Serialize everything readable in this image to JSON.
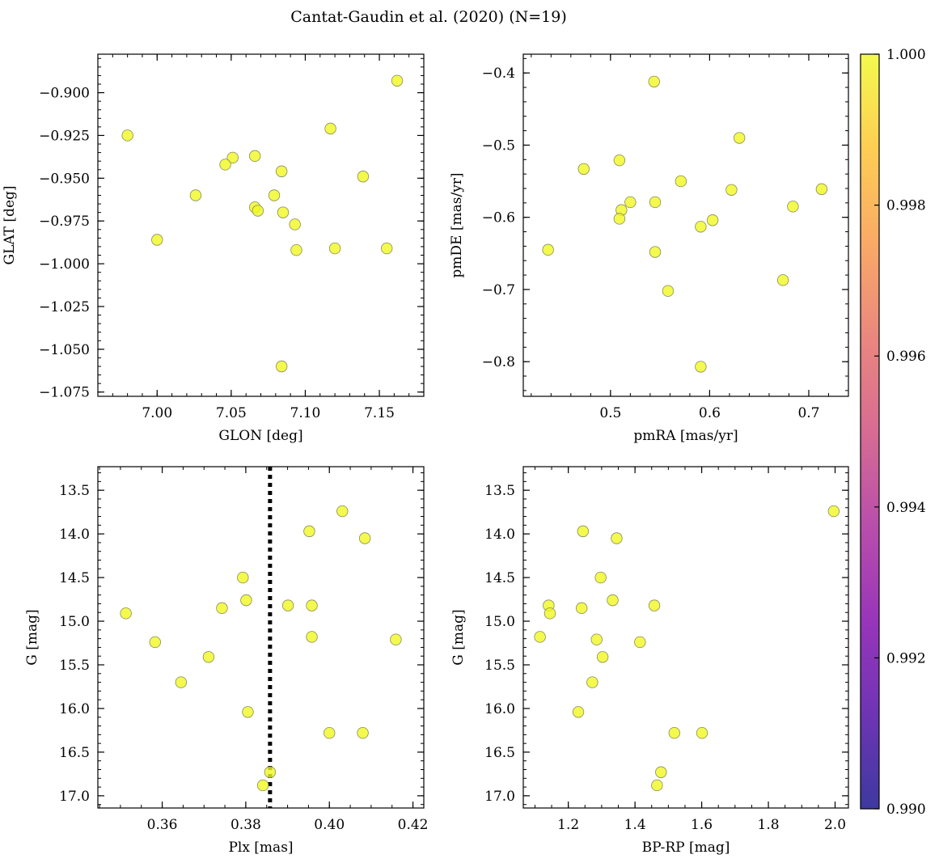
{
  "title": "Cantat-Gaudin et al. (2020) (N=19)",
  "colors": {
    "point": "#f0f921",
    "point_edge": "#8a8a5a",
    "frame": "#000000",
    "vline": "#000000"
  },
  "colorbar": {
    "ticks": [
      "0.990",
      "0.992",
      "0.994",
      "0.996",
      "0.998",
      "1.000"
    ],
    "range": [
      0.99,
      1.0
    ],
    "colormap": "plasma"
  },
  "chart_data": [
    {
      "type": "scatter",
      "id": "glon-glat",
      "xlabel": "GLON [deg]",
      "ylabel": "GLAT [deg]",
      "xlim": [
        6.96,
        7.18
      ],
      "ylim": [
        -1.0775,
        -0.8775
      ],
      "xticks": [
        7.0,
        7.05,
        7.1,
        7.15
      ],
      "xtick_labels": [
        "7.00",
        "7.05",
        "7.10",
        "7.15"
      ],
      "yticks": [
        -0.9,
        -0.925,
        -0.95,
        -0.975,
        -1.0,
        -1.025,
        -1.05,
        -1.075
      ],
      "ytick_labels": [
        "−0.900",
        "−0.925",
        "−0.950",
        "−0.975",
        "−1.000",
        "−1.025",
        "−1.050",
        "−1.075"
      ],
      "x_minor_step": 0.01,
      "y_minor_step": 0.005,
      "points": [
        [
          6.98,
          -0.925
        ],
        [
          7.162,
          -0.893
        ],
        [
          7.117,
          -0.921
        ],
        [
          7.066,
          -0.937
        ],
        [
          7.051,
          -0.938
        ],
        [
          7.046,
          -0.942
        ],
        [
          7.084,
          -0.946
        ],
        [
          7.139,
          -0.949
        ],
        [
          7.026,
          -0.96
        ],
        [
          7.079,
          -0.96
        ],
        [
          7.066,
          -0.967
        ],
        [
          7.068,
          -0.969
        ],
        [
          7.085,
          -0.97
        ],
        [
          7.093,
          -0.977
        ],
        [
          7.0,
          -0.986
        ],
        [
          7.094,
          -0.992
        ],
        [
          7.12,
          -0.991
        ],
        [
          7.155,
          -0.991
        ],
        [
          7.084,
          -1.06
        ]
      ]
    },
    {
      "type": "scatter",
      "id": "pmra-pmde",
      "xlabel": "pmRA [mas/yr]",
      "ylabel": "pmDE [mas/yr]",
      "xlim": [
        0.412,
        0.74
      ],
      "ylim": [
        -0.848,
        -0.374
      ],
      "xticks": [
        0.5,
        0.6,
        0.7
      ],
      "xtick_labels": [
        "0.5",
        "0.6",
        "0.7"
      ],
      "yticks": [
        -0.4,
        -0.5,
        -0.6,
        -0.7,
        -0.8
      ],
      "ytick_labels": [
        "−0.4",
        "−0.5",
        "−0.6",
        "−0.7",
        "−0.8"
      ],
      "x_minor_step": 0.02,
      "y_minor_step": 0.02,
      "points": [
        [
          0.544,
          -0.412
        ],
        [
          0.63,
          -0.49
        ],
        [
          0.509,
          -0.521
        ],
        [
          0.473,
          -0.533
        ],
        [
          0.571,
          -0.55
        ],
        [
          0.622,
          -0.562
        ],
        [
          0.713,
          -0.561
        ],
        [
          0.52,
          -0.579
        ],
        [
          0.545,
          -0.579
        ],
        [
          0.684,
          -0.585
        ],
        [
          0.511,
          -0.59
        ],
        [
          0.509,
          -0.602
        ],
        [
          0.603,
          -0.604
        ],
        [
          0.591,
          -0.613
        ],
        [
          0.437,
          -0.645
        ],
        [
          0.545,
          -0.648
        ],
        [
          0.674,
          -0.687
        ],
        [
          0.558,
          -0.702
        ],
        [
          0.591,
          -0.807
        ]
      ]
    },
    {
      "type": "scatter",
      "id": "plx-g",
      "xlabel": "Plx [mas]",
      "ylabel": "G [mag]",
      "xlim": [
        0.3446,
        0.4226
      ],
      "ylim": [
        17.14,
        13.23
      ],
      "y_inverted": true,
      "xticks": [
        0.36,
        0.38,
        0.4,
        0.42
      ],
      "xtick_labels": [
        "0.36",
        "0.38",
        "0.40",
        "0.42"
      ],
      "yticks": [
        13.5,
        14.0,
        14.5,
        15.0,
        15.5,
        16.0,
        16.5,
        17.0
      ],
      "ytick_labels": [
        "13.5",
        "14.0",
        "14.5",
        "15.0",
        "15.5",
        "16.0",
        "16.5",
        "17.0"
      ],
      "x_minor_step": 0.005,
      "y_minor_step": 0.1,
      "vline": 0.3858,
      "points": [
        [
          0.4031,
          13.74
        ],
        [
          0.3952,
          13.97
        ],
        [
          0.4085,
          14.05
        ],
        [
          0.3793,
          14.5
        ],
        [
          0.3801,
          14.76
        ],
        [
          0.3901,
          14.82
        ],
        [
          0.3958,
          14.82
        ],
        [
          0.3743,
          14.85
        ],
        [
          0.3513,
          14.91
        ],
        [
          0.3958,
          15.18
        ],
        [
          0.4159,
          15.21
        ],
        [
          0.3583,
          15.24
        ],
        [
          0.3711,
          15.41
        ],
        [
          0.3645,
          15.7
        ],
        [
          0.3805,
          16.04
        ],
        [
          0.4,
          16.28
        ],
        [
          0.408,
          16.28
        ],
        [
          0.3858,
          16.73
        ],
        [
          0.3841,
          16.88
        ]
      ]
    },
    {
      "type": "scatter",
      "id": "bprp-g",
      "xlabel": "BP-RP [mag]",
      "ylabel": "G [mag]",
      "xlim": [
        1.065,
        2.04
      ],
      "ylim": [
        17.14,
        13.23
      ],
      "y_inverted": true,
      "xticks": [
        1.2,
        1.4,
        1.6,
        1.8,
        2.0
      ],
      "xtick_labels": [
        "1.2",
        "1.4",
        "1.6",
        "1.8",
        "2.0"
      ],
      "yticks": [
        13.5,
        14.0,
        14.5,
        15.0,
        15.5,
        16.0,
        16.5,
        17.0
      ],
      "ytick_labels": [
        "13.5",
        "14.0",
        "14.5",
        "15.0",
        "15.5",
        "16.0",
        "16.5",
        "17.0"
      ],
      "x_minor_step": 0.05,
      "y_minor_step": 0.1,
      "points": [
        [
          1.996,
          13.74
        ],
        [
          1.244,
          13.97
        ],
        [
          1.345,
          14.05
        ],
        [
          1.297,
          14.5
        ],
        [
          1.333,
          14.76
        ],
        [
          1.458,
          14.82
        ],
        [
          1.141,
          14.82
        ],
        [
          1.24,
          14.85
        ],
        [
          1.145,
          14.91
        ],
        [
          1.115,
          15.18
        ],
        [
          1.285,
          15.21
        ],
        [
          1.415,
          15.24
        ],
        [
          1.303,
          15.41
        ],
        [
          1.272,
          15.7
        ],
        [
          1.23,
          16.04
        ],
        [
          1.518,
          16.28
        ],
        [
          1.601,
          16.28
        ],
        [
          1.478,
          16.73
        ],
        [
          1.466,
          16.88
        ]
      ]
    }
  ]
}
